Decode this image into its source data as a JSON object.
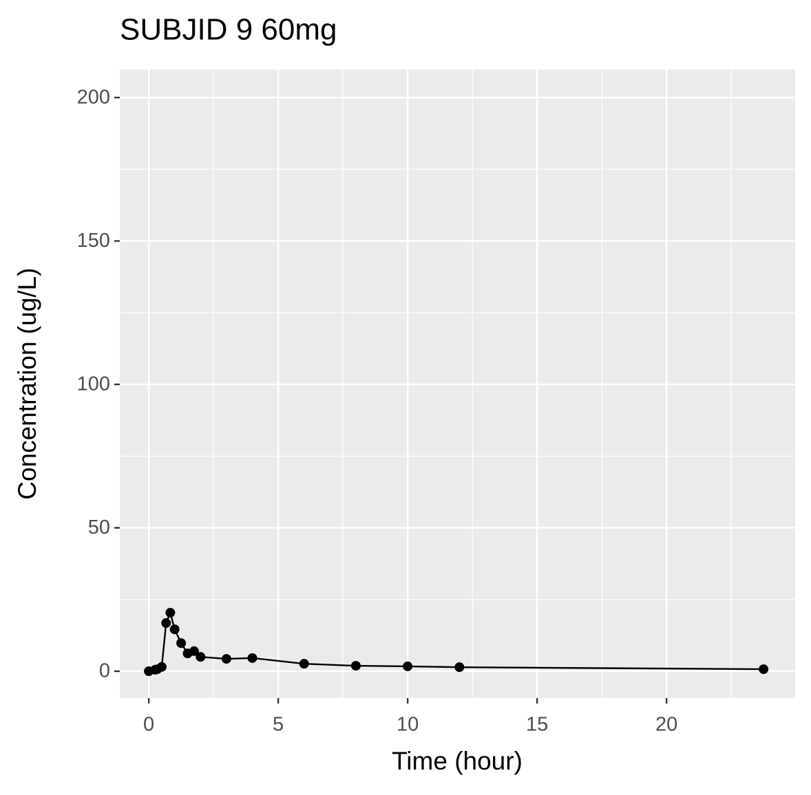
{
  "chart_data": {
    "type": "line",
    "title": "SUBJID 9 60mg",
    "x_label": "Time (hour)",
    "y_label": "Concentration (ug/L)",
    "x": [
      0,
      0.25,
      0.33,
      0.5,
      0.67,
      0.83,
      1,
      1.25,
      1.5,
      1.75,
      2,
      3,
      4,
      6,
      8,
      10,
      12,
      23.75
    ],
    "series": [
      {
        "color": "#000000",
        "values": [
          0,
          0.5,
          0.7,
          1.5,
          16.8,
          20.4,
          14.6,
          9.8,
          6.2,
          7,
          5,
          4.3,
          4.6,
          2.6,
          1.9,
          1.7,
          1.4,
          0.7
        ]
      }
    ],
    "xlim": [
      -1.12,
      24.97
    ],
    "xticks": [
      0,
      5,
      10,
      15,
      20
    ],
    "ylim": [
      -9.35,
      209.8
    ],
    "yticks": [
      0,
      50,
      100,
      150,
      200
    ],
    "grid": true,
    "markers": true
  }
}
